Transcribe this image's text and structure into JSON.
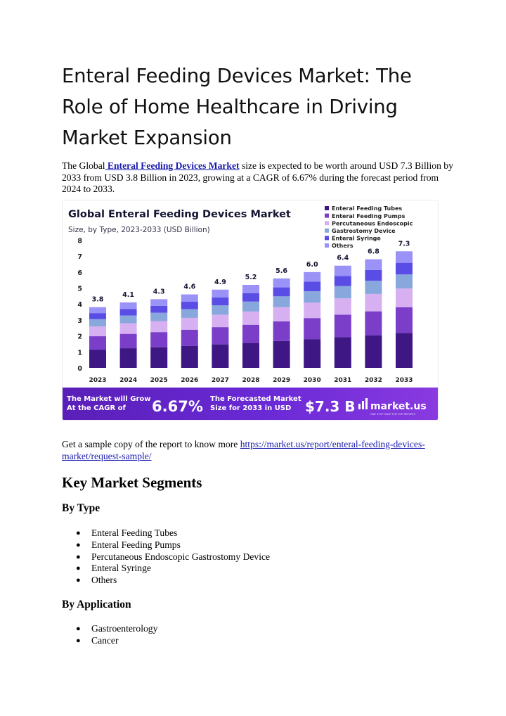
{
  "article": {
    "title": "Enteral Feeding Devices Market: The Role of Home Healthcare in Driving Market Expansion",
    "intro_prefix": "The Global",
    "intro_link": " Enteral Feeding Devices Market",
    "intro_suffix": " size is expected to be worth around USD 7.3 Billion by 2033 from USD 3.8 Billion in 2023, growing at a CAGR of 6.67% during the forecast period from 2024 to 2033.",
    "sample_text": "Get a sample copy of the report to know more ",
    "sample_link": "https://market.us/report/enteral-feeding-devices-market/request-sample/"
  },
  "segments": {
    "heading": "Key Market Segments",
    "by_type": {
      "heading": "By Type",
      "items": [
        "Enteral Feeding Tubes",
        "Enteral Feeding Pumps",
        "Percutaneous Endoscopic Gastrostomy Device",
        "Enteral Syringe",
        "Others"
      ]
    },
    "by_application": {
      "heading": "By Application",
      "items": [
        "Gastroenterology",
        "Cancer"
      ]
    }
  },
  "chart_data": {
    "type": "bar",
    "stacked": true,
    "title": "Global Enteral Feeding Devices Market",
    "subtitle": "Size, by Type, 2023-2033 (USD Billion)",
    "categories": [
      "2023",
      "2024",
      "2025",
      "2026",
      "2027",
      "2028",
      "2029",
      "2030",
      "2031",
      "2032",
      "2033"
    ],
    "totals": [
      3.8,
      4.1,
      4.3,
      4.6,
      4.9,
      5.2,
      5.6,
      6.0,
      6.4,
      6.8,
      7.3
    ],
    "total_labels": [
      "3.8",
      "4.1",
      "4.3",
      "4.6",
      "4.9",
      "5.2",
      "5.6",
      "6.0",
      "6.4",
      "6.8",
      "7.3"
    ],
    "series": [
      {
        "name": "Enteral Feeding Tubes",
        "color": "#3e1785",
        "values": [
          1.14,
          1.23,
          1.29,
          1.38,
          1.47,
          1.56,
          1.68,
          1.8,
          1.92,
          2.04,
          2.19
        ]
      },
      {
        "name": "Enteral Feeding Pumps",
        "color": "#7a3ec8",
        "values": [
          0.84,
          0.9,
          0.95,
          1.01,
          1.08,
          1.14,
          1.23,
          1.32,
          1.41,
          1.5,
          1.61
        ]
      },
      {
        "name": "Percutaneous Endoscopic",
        "color": "#d7b0f2",
        "values": [
          0.61,
          0.66,
          0.69,
          0.74,
          0.78,
          0.83,
          0.9,
          0.96,
          1.02,
          1.09,
          1.17
        ]
      },
      {
        "name": "Gastrostomy Device",
        "color": "#88a7dd",
        "values": [
          0.46,
          0.49,
          0.52,
          0.55,
          0.59,
          0.62,
          0.67,
          0.72,
          0.77,
          0.82,
          0.88
        ]
      },
      {
        "name": "Enteral Syringe",
        "color": "#5a4de6",
        "values": [
          0.38,
          0.41,
          0.43,
          0.46,
          0.49,
          0.52,
          0.56,
          0.6,
          0.64,
          0.68,
          0.73
        ]
      },
      {
        "name": "Others",
        "color": "#9a92f7",
        "values": [
          0.37,
          0.41,
          0.42,
          0.46,
          0.49,
          0.53,
          0.56,
          0.6,
          0.64,
          0.67,
          0.72
        ]
      }
    ],
    "yticks": [
      "0",
      "1",
      "2",
      "3",
      "4",
      "5",
      "6",
      "7",
      "8"
    ],
    "ylim": [
      0,
      8
    ],
    "legend_position": "top-right",
    "footer": {
      "cagr_caption": "The Market will Grow At the CAGR of",
      "cagr_value": "6.67%",
      "forecast_caption": "The Forecasted Market Size for 2033 in USD",
      "forecast_value": "$7.3 B",
      "brand": "market.us",
      "brand_tagline": "ONE STOP SHOP FOR THE REPORTS"
    }
  }
}
